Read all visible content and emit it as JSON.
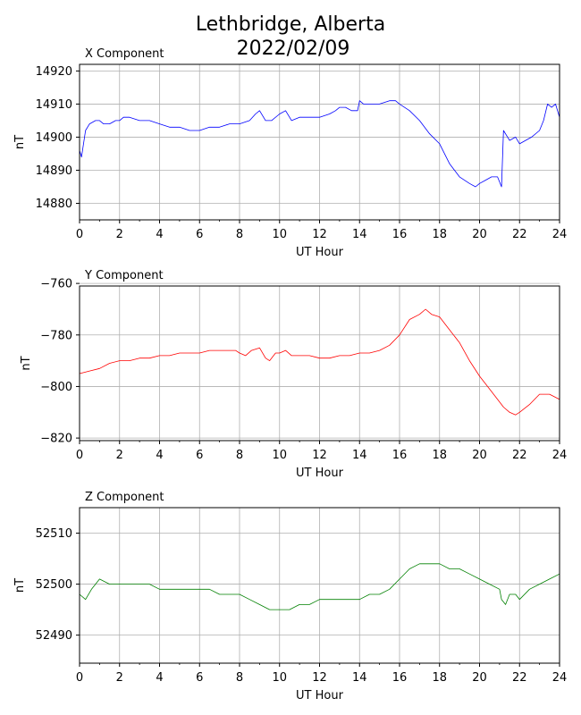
{
  "title_line1": "Lethbridge, Alberta",
  "title_line2": "2022/02/09",
  "chart_data": [
    {
      "type": "line",
      "title": "X Component",
      "xlabel": "UT Hour",
      "ylabel": "nT",
      "xlim": [
        0,
        24
      ],
      "ylim": [
        14875,
        14922
      ],
      "xticks": [
        0,
        2,
        4,
        6,
        8,
        10,
        12,
        14,
        16,
        18,
        20,
        22,
        24
      ],
      "yticks": [
        14880,
        14890,
        14900,
        14910,
        14920
      ],
      "grid": true,
      "color": "#0000ff",
      "series": [
        {
          "x": [
            0,
            0.1,
            0.3,
            0.5,
            0.8,
            1.0,
            1.2,
            1.5,
            1.8,
            2.0,
            2.2,
            2.5,
            3.0,
            3.5,
            4.0,
            4.5,
            5.0,
            5.5,
            6.0,
            6.5,
            7.0,
            7.5,
            8.0,
            8.5,
            8.8,
            9.0,
            9.3,
            9.6,
            10.0,
            10.3,
            10.6,
            11.0,
            11.5,
            12.0,
            12.5,
            12.8,
            13.0,
            13.3,
            13.6,
            13.9,
            14.0,
            14.2,
            14.5,
            15.0,
            15.5,
            15.8,
            16.0,
            16.5,
            17.0,
            17.5,
            18.0,
            18.5,
            19.0,
            19.5,
            19.8,
            20.0,
            20.3,
            20.6,
            20.9,
            21.1,
            21.2,
            21.5,
            21.8,
            22.0,
            22.3,
            22.6,
            23.0,
            23.2,
            23.4,
            23.6,
            23.8,
            24.0
          ],
          "values": [
            14896,
            14894,
            14902,
            14904,
            14905,
            14905,
            14904,
            14904,
            14905,
            14905,
            14906,
            14906,
            14905,
            14905,
            14904,
            14903,
            14903,
            14902,
            14902,
            14903,
            14903,
            14904,
            14904,
            14905,
            14907,
            14908,
            14905,
            14905,
            14907,
            14908,
            14905,
            14906,
            14906,
            14906,
            14907,
            14908,
            14909,
            14909,
            14908,
            14908,
            14911,
            14910,
            14910,
            14910,
            14911,
            14911,
            14910,
            14908,
            14905,
            14901,
            14898,
            14892,
            14888,
            14886,
            14885,
            14886,
            14887,
            14888,
            14888,
            14885,
            14902,
            14899,
            14900,
            14898,
            14899,
            14900,
            14902,
            14905,
            14910,
            14909,
            14910,
            14906
          ]
        }
      ]
    },
    {
      "type": "line",
      "title": "Y Component",
      "xlabel": "UT Hour",
      "ylabel": "nT",
      "xlim": [
        0,
        24
      ],
      "ylim": [
        -821,
        -761
      ],
      "xticks": [
        0,
        2,
        4,
        6,
        8,
        10,
        12,
        14,
        16,
        18,
        20,
        22,
        24
      ],
      "yticks": [
        -820,
        -800,
        -780,
        -760
      ],
      "grid": true,
      "color": "#ff0000",
      "series": [
        {
          "x": [
            0,
            0.5,
            1.0,
            1.5,
            2.0,
            2.5,
            3.0,
            3.5,
            4.0,
            4.5,
            5.0,
            5.5,
            6.0,
            6.5,
            7.0,
            7.5,
            7.8,
            8.0,
            8.3,
            8.6,
            9.0,
            9.3,
            9.5,
            9.8,
            10.0,
            10.3,
            10.6,
            11.0,
            11.5,
            12.0,
            12.5,
            13.0,
            13.5,
            14.0,
            14.5,
            15.0,
            15.5,
            16.0,
            16.5,
            17.0,
            17.3,
            17.6,
            18.0,
            18.5,
            19.0,
            19.5,
            20.0,
            20.5,
            21.0,
            21.2,
            21.5,
            21.8,
            22.0,
            22.5,
            23.0,
            23.5,
            24.0
          ],
          "values": [
            -795,
            -794,
            -793,
            -791,
            -790,
            -790,
            -789,
            -789,
            -788,
            -788,
            -787,
            -787,
            -787,
            -786,
            -786,
            -786,
            -786,
            -787,
            -788,
            -786,
            -785,
            -789,
            -790,
            -787,
            -787,
            -786,
            -788,
            -788,
            -788,
            -789,
            -789,
            -788,
            -788,
            -787,
            -787,
            -786,
            -784,
            -780,
            -774,
            -772,
            -770,
            -772,
            -773,
            -778,
            -783,
            -790,
            -796,
            -801,
            -806,
            -808,
            -810,
            -811,
            -810,
            -807,
            -803,
            -803,
            -805
          ]
        }
      ]
    },
    {
      "type": "line",
      "title": "Z Component",
      "xlabel": "UT Hour",
      "ylabel": "nT",
      "xlim": [
        0,
        24
      ],
      "ylim": [
        52484.5,
        52515
      ],
      "xticks": [
        0,
        2,
        4,
        6,
        8,
        10,
        12,
        14,
        16,
        18,
        20,
        22,
        24
      ],
      "yticks": [
        52490,
        52500,
        52510
      ],
      "grid": true,
      "color": "#008000",
      "series": [
        {
          "x": [
            0,
            0.3,
            0.6,
            1.0,
            1.5,
            2.0,
            2.5,
            3.0,
            3.5,
            4.0,
            4.5,
            5.0,
            5.5,
            6.0,
            6.5,
            7.0,
            7.5,
            8.0,
            8.5,
            9.0,
            9.5,
            10.0,
            10.5,
            11.0,
            11.5,
            12.0,
            12.5,
            13.0,
            13.5,
            14.0,
            14.5,
            15.0,
            15.5,
            16.0,
            16.5,
            17.0,
            17.5,
            18.0,
            18.5,
            19.0,
            19.5,
            20.0,
            20.5,
            21.0,
            21.1,
            21.3,
            21.5,
            21.8,
            22.0,
            22.5,
            23.0,
            23.5,
            24.0
          ],
          "values": [
            52498,
            52497,
            52499,
            52501,
            52500,
            52500,
            52500,
            52500,
            52500,
            52499,
            52499,
            52499,
            52499,
            52499,
            52499,
            52498,
            52498,
            52498,
            52497,
            52496,
            52495,
            52495,
            52495,
            52496,
            52496,
            52497,
            52497,
            52497,
            52497,
            52497,
            52498,
            52498,
            52499,
            52501,
            52503,
            52504,
            52504,
            52504,
            52503,
            52503,
            52502,
            52501,
            52500,
            52499,
            52497,
            52496,
            52498,
            52498,
            52497,
            52499,
            52500,
            52501,
            52502
          ]
        }
      ]
    }
  ]
}
